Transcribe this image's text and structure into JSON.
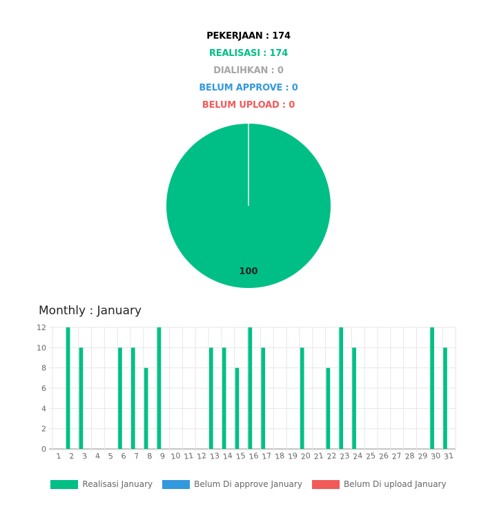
{
  "summary": {
    "pekerjaan": "PEKERJAAN : 174",
    "realisasi": "REALISASI : 174",
    "dialihkan": "DIALIHKAN : 0",
    "belum_approve": "BELUM APPROVE : 0",
    "belum_upload": "BELUM UPLOAD : 0"
  },
  "colors": {
    "realisasi": "#00bf86",
    "dialihkan": "#a6a6a6",
    "belum_approve": "#3399dd",
    "belum_upload": "#f25a5a"
  },
  "monthly_title": "Monthly : January",
  "chart_data": [
    {
      "type": "pie",
      "slices": [
        {
          "name": "Realisasi",
          "value": 100,
          "label": "100",
          "color": "#00bf86"
        }
      ]
    },
    {
      "type": "bar",
      "categories": [
        "1",
        "2",
        "3",
        "4",
        "5",
        "6",
        "7",
        "8",
        "9",
        "10",
        "11",
        "12",
        "13",
        "14",
        "15",
        "16",
        "17",
        "18",
        "19",
        "20",
        "21",
        "22",
        "23",
        "24",
        "25",
        "26",
        "27",
        "28",
        "29",
        "30",
        "31"
      ],
      "series": [
        {
          "name": "Realisasi January",
          "color": "#00bf86",
          "values": [
            0,
            12,
            10,
            0,
            0,
            10,
            10,
            8,
            12,
            0,
            0,
            0,
            10,
            10,
            8,
            12,
            10,
            0,
            0,
            10,
            0,
            8,
            12,
            10,
            0,
            0,
            0,
            0,
            0,
            12,
            10
          ]
        },
        {
          "name": "Belum Di approve January",
          "color": "#3399dd",
          "values": [
            0,
            0,
            0,
            0,
            0,
            0,
            0,
            0,
            0,
            0,
            0,
            0,
            0,
            0,
            0,
            0,
            0,
            0,
            0,
            0,
            0,
            0,
            0,
            0,
            0,
            0,
            0,
            0,
            0,
            0,
            0
          ]
        },
        {
          "name": "Belum Di upload January",
          "color": "#f25a5a",
          "values": [
            0,
            0,
            0,
            0,
            0,
            0,
            0,
            0,
            0,
            0,
            0,
            0,
            0,
            0,
            0,
            0,
            0,
            0,
            0,
            0,
            0,
            0,
            0,
            0,
            0,
            0,
            0,
            0,
            0,
            0,
            0
          ]
        }
      ],
      "ylim": [
        0,
        12
      ],
      "yticks": [
        0,
        2,
        4,
        6,
        8,
        10,
        12
      ],
      "grid": true,
      "legend": "bottom"
    }
  ],
  "legend": [
    {
      "label": "Realisasi January",
      "color": "#00bf86"
    },
    {
      "label": "Belum Di approve January",
      "color": "#3399dd"
    },
    {
      "label": "Belum Di upload January",
      "color": "#f25a5a"
    }
  ]
}
